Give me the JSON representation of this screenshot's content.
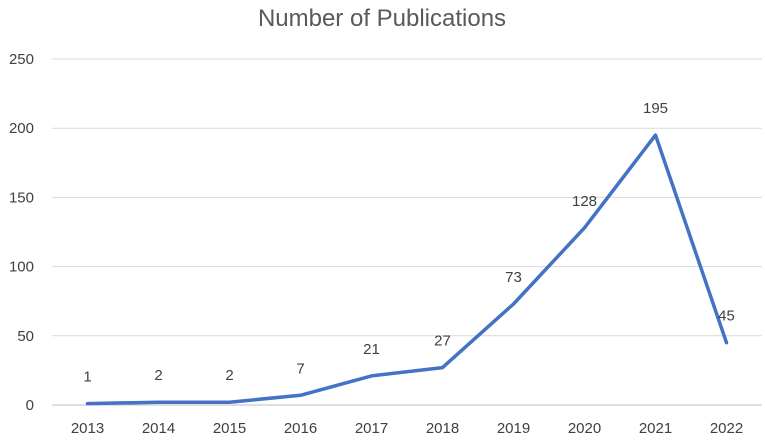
{
  "chart_data": {
    "type": "line",
    "title": "Number of Publications",
    "xlabel": "",
    "ylabel": "",
    "categories": [
      "2013",
      "2014",
      "2015",
      "2016",
      "2017",
      "2018",
      "2019",
      "2020",
      "2021",
      "2022"
    ],
    "series": [
      {
        "values": [
          1,
          2,
          2,
          7,
          21,
          27,
          73,
          128,
          195,
          45
        ],
        "color": "#4472C4"
      }
    ],
    "data_labels": [
      "1",
      "2",
      "2",
      "7",
      "21",
      "27",
      "73",
      "128",
      "195",
      "45"
    ],
    "ylim": [
      0,
      250
    ],
    "yticks": [
      0,
      50,
      100,
      150,
      200,
      250
    ],
    "grid": true,
    "legend": "none",
    "colors": {
      "series": "#4472C4",
      "grid": "#d9d9d9",
      "text": "#404040",
      "title": "#595959"
    }
  }
}
